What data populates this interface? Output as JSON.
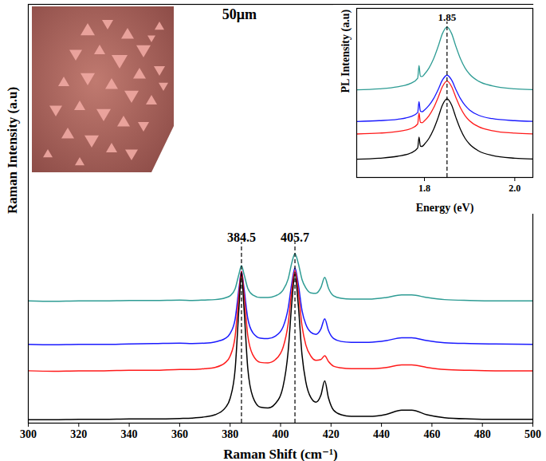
{
  "chart_data": [
    {
      "type": "line",
      "x_label": "Raman Shift (cm⁻¹)",
      "y_label": "Raman Intensity (a.u)",
      "x": [
        300,
        310,
        320,
        330,
        340,
        350,
        360,
        365,
        370,
        374,
        378,
        380,
        382,
        383.5,
        384.5,
        385.5,
        387,
        389,
        392,
        395,
        398,
        401,
        403,
        404.5,
        405.7,
        407,
        408.5,
        410,
        412,
        414,
        416,
        417.5,
        419,
        421,
        424,
        428,
        435,
        442,
        448,
        452,
        458,
        465,
        475,
        485,
        500
      ],
      "series": [
        {
          "color": "#2e9c94",
          "values": [
            29.2,
            29.1,
            29.2,
            29.2,
            29.3,
            29.3,
            29.4,
            29.3,
            29.4,
            29.5,
            29.9,
            30.4,
            32.1,
            35.6,
            37.6,
            35.6,
            32.2,
            30.6,
            30.0,
            30.0,
            30.4,
            31.8,
            34.4,
            38.4,
            40.5,
            38.2,
            34.3,
            32.3,
            31.1,
            31.0,
            32.4,
            34.8,
            32.2,
            30.4,
            29.8,
            29.6,
            29.6,
            30.0,
            30.6,
            30.6,
            30.0,
            29.5,
            29.3,
            29.2,
            29.2
          ]
        },
        {
          "color": "#1a1aff",
          "values": [
            18.8,
            18.7,
            18.8,
            18.8,
            18.9,
            19.0,
            19.1,
            19.0,
            19.1,
            19.4,
            20.2,
            21.4,
            24.9,
            32.1,
            36.3,
            32.2,
            25.0,
            21.6,
            20.3,
            20.2,
            20.8,
            23.0,
            27.4,
            33.6,
            37.1,
            33.3,
            26.9,
            23.6,
            21.7,
            21.2,
            22.5,
            24.9,
            22.1,
            20.2,
            19.5,
            19.3,
            19.3,
            19.7,
            20.4,
            20.4,
            19.7,
            19.2,
            19.0,
            18.9,
            18.8
          ]
        },
        {
          "color": "#ff1a1a",
          "values": [
            12.5,
            12.4,
            12.5,
            12.5,
            12.6,
            12.6,
            12.8,
            12.8,
            13.0,
            13.3,
            14.4,
            16.0,
            20.8,
            30.7,
            36.3,
            30.8,
            20.9,
            16.3,
            14.5,
            14.4,
            15.2,
            18.1,
            23.7,
            32.0,
            36.5,
            31.6,
            23.2,
            18.7,
            16.0,
            15.0,
            15.2,
            16.1,
            14.7,
            13.6,
            13.2,
            13.0,
            13.0,
            13.3,
            13.9,
            13.9,
            13.3,
            12.8,
            12.6,
            12.5,
            12.5
          ]
        },
        {
          "color": "#000000",
          "values": [
            0.8,
            0.8,
            0.9,
            0.9,
            1.0,
            1.0,
            1.1,
            1.2,
            1.5,
            2.0,
            3.6,
            5.9,
            12.9,
            27.5,
            35.8,
            27.5,
            13.1,
            6.3,
            3.8,
            3.6,
            4.7,
            8.8,
            17.1,
            29.1,
            35.6,
            28.4,
            16.3,
            9.9,
            6.1,
            5.0,
            6.7,
            10.1,
            6.0,
            3.1,
            2.0,
            1.6,
            1.6,
            2.1,
            3.1,
            3.1,
            2.0,
            1.3,
            1.0,
            0.9,
            0.9
          ]
        }
      ],
      "xlim": [
        300,
        500
      ],
      "xticks": [
        300,
        320,
        340,
        360,
        380,
        400,
        420,
        440,
        460,
        480,
        500
      ],
      "ylim": [
        0,
        100
      ],
      "tick_labels": "x",
      "peak_markers": [
        {
          "text": "384.5",
          "x": 384.5,
          "y": 43.2
        },
        {
          "text": "405.7",
          "x": 405.7,
          "y": 43.2
        }
      ],
      "annotations": [
        {
          "text": "50μm",
          "x": 383.7,
          "y": 97.5
        }
      ]
    },
    {
      "type": "line",
      "x_label": "Energy (eV)",
      "y_label": "PL Intensity (a.u)",
      "x": [
        1.65,
        1.7,
        1.74,
        1.77,
        1.785,
        1.788,
        1.791,
        1.795,
        1.8,
        1.81,
        1.82,
        1.83,
        1.84,
        1.85,
        1.86,
        1.87,
        1.88,
        1.89,
        1.9,
        1.92,
        1.95,
        2.0,
        2.04
      ],
      "series": [
        {
          "color": "#2e9c94",
          "values": [
            51.8,
            52.4,
            53.6,
            55.7,
            58.7,
            66.2,
            59.8,
            59.7,
            61.1,
            64.7,
            70.0,
            77.2,
            85.2,
            89.0,
            85.2,
            77.2,
            70.0,
            64.7,
            61.1,
            56.9,
            54.2,
            52.4,
            51.9
          ]
        },
        {
          "color": "#1a1aff",
          "values": [
            33.1,
            33.6,
            34.4,
            36.0,
            38.4,
            44.8,
            39.2,
            38.9,
            39.9,
            42.6,
            46.5,
            51.8,
            57.7,
            60.5,
            57.7,
            51.8,
            46.5,
            42.6,
            39.9,
            36.8,
            34.8,
            33.6,
            33.2
          ]
        },
        {
          "color": "#ff1a1a",
          "values": [
            25.7,
            26.2,
            27.2,
            28.9,
            31.6,
            38.1,
            32.6,
            32.4,
            33.5,
            36.5,
            41.0,
            47.1,
            53.8,
            57.0,
            53.8,
            47.1,
            41.0,
            36.5,
            33.5,
            30.0,
            27.7,
            26.2,
            25.8
          ]
        },
        {
          "color": "#000000",
          "values": [
            10.8,
            11.4,
            12.5,
            14.5,
            17.4,
            23.9,
            18.5,
            18.4,
            19.7,
            23.1,
            28.3,
            35.2,
            42.9,
            46.5,
            42.9,
            35.2,
            28.3,
            23.1,
            19.7,
            15.7,
            13.0,
            11.4,
            10.9
          ]
        }
      ],
      "xlim": [
        1.65,
        2.04
      ],
      "xticks": [
        1.8,
        {
          "value": 2,
          "label": "2.0"
        }
      ],
      "ylim": [
        0,
        100
      ],
      "tick_labels": "x",
      "peak_markers": [
        {
          "text": "1.85",
          "x": 1.85,
          "y": 92
        }
      ]
    }
  ]
}
